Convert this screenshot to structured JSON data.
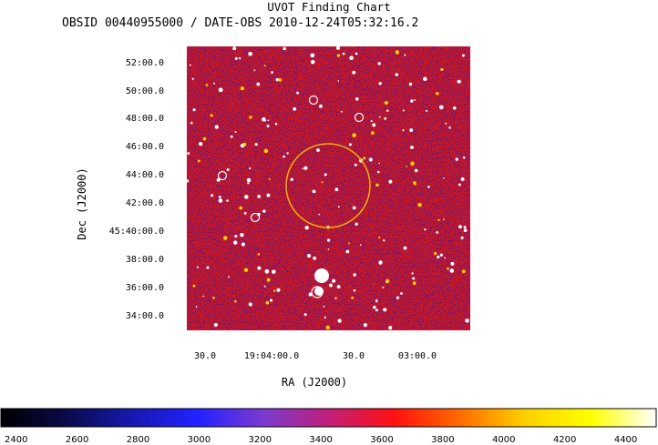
{
  "title": "UVOT Finding Chart",
  "subtitle": "OBSID 00440955000 / DATE-OBS 2010-12-24T05:32:16.2",
  "chart_data": {
    "type": "heatmap",
    "xlabel": "RA (J2000)",
    "ylabel": "Dec (J2000)",
    "x_ticks": [
      "30.0",
      "19:04:00.0",
      "30.0",
      "03:00.0"
    ],
    "y_ticks": [
      "52:00.0",
      "50:00.0",
      "48:00.0",
      "46:00.0",
      "44:00.0",
      "42:00.0",
      "45:40:00.0",
      "38:00.0",
      "36:00.0",
      "34:00.0"
    ],
    "colorbar": {
      "ticks": [
        2400,
        2600,
        2800,
        3000,
        3200,
        3400,
        3600,
        3800,
        4000,
        4200,
        4400
      ],
      "range": [
        2350,
        4500
      ],
      "colormap": [
        "#000000",
        "#0a0a4a",
        "#1818b0",
        "#2222ff",
        "#7a3ad0",
        "#c0207a",
        "#ff1010",
        "#ff6a00",
        "#ffd000",
        "#ffff00",
        "#ffffff"
      ]
    },
    "grid": false
  },
  "colors": {
    "source_circle": "#f0b400",
    "marker_circle": "#ffffff",
    "background_blue": "#1a1ad8",
    "noise_red": "#d01818"
  }
}
